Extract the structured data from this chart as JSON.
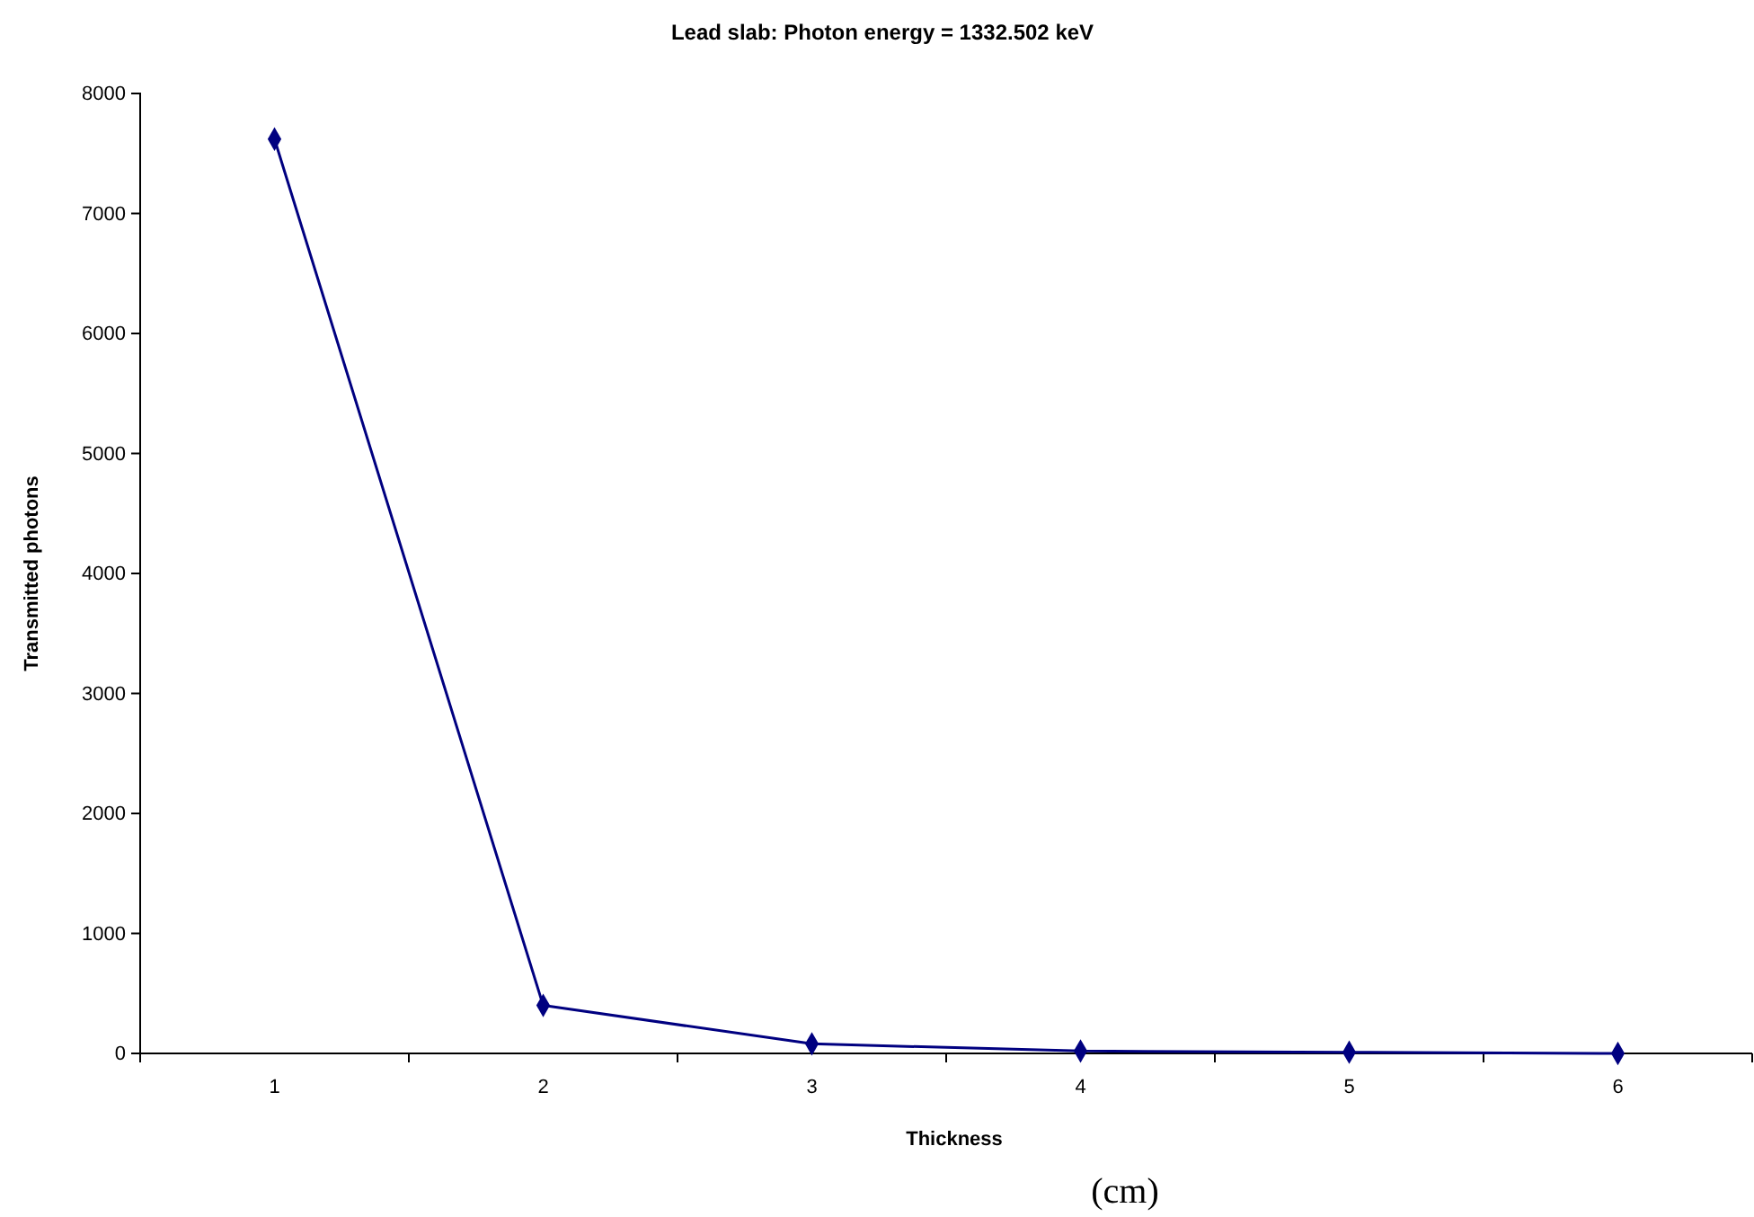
{
  "chart_data": {
    "type": "line",
    "title": "Lead slab: Photon energy = 1332.502 keV",
    "xlabel": "Thickness",
    "ylabel": "Transmitted photons",
    "categories": [
      "1",
      "2",
      "3",
      "4",
      "5",
      "6"
    ],
    "series": [
      {
        "color": "#000080",
        "values": [
          7620,
          400,
          80,
          20,
          10,
          0
        ]
      }
    ],
    "ylim": [
      0,
      8000
    ],
    "yticks": [
      0,
      1000,
      2000,
      3000,
      4000,
      5000,
      6000,
      7000,
      8000
    ],
    "grid": false,
    "marker": "diamond",
    "line_style": "solid",
    "annotations": [
      "(cm)"
    ]
  }
}
